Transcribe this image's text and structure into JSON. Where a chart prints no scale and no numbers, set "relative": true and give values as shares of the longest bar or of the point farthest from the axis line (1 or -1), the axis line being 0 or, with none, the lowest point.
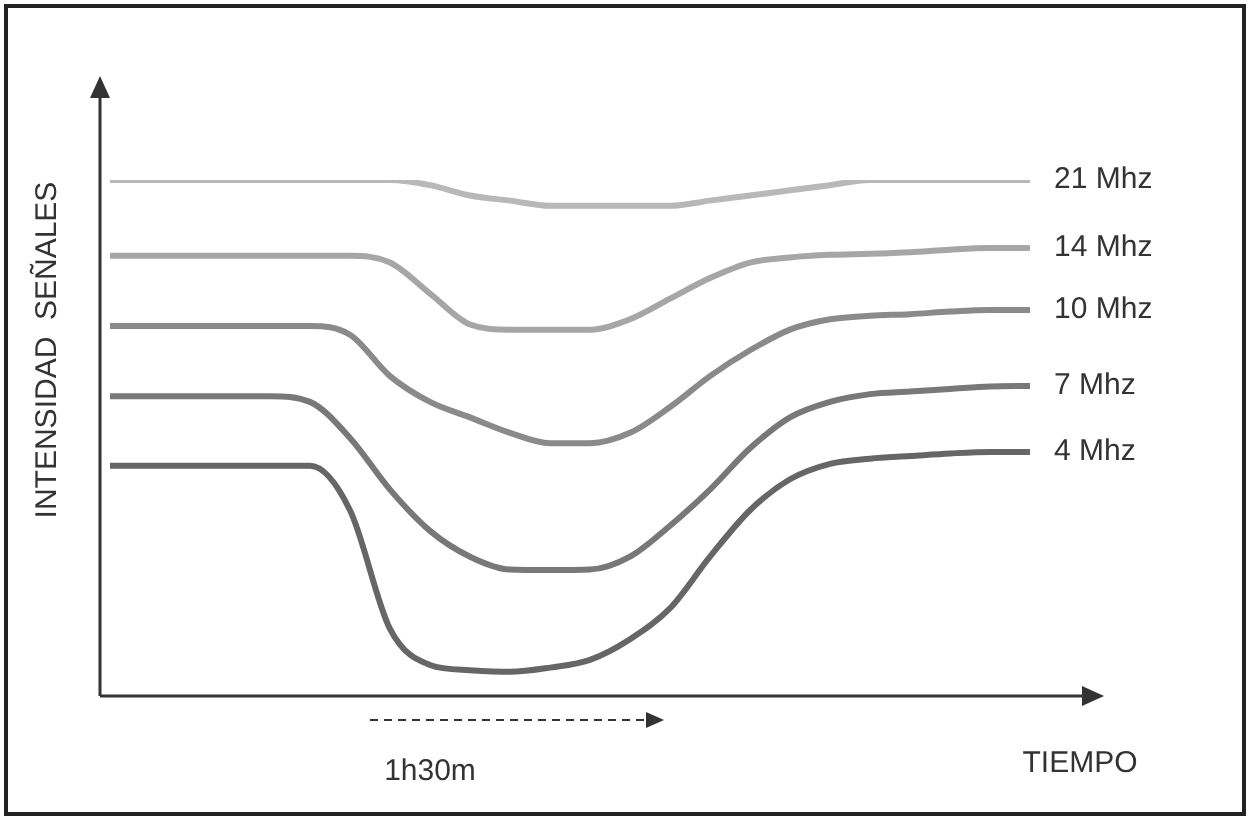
{
  "chart_data": {
    "type": "line",
    "relative": true,
    "xlabel": "TIEMPO",
    "ylabel": "INTENSIDAD  SEÑALES",
    "legend": false,
    "marker": "none",
    "line_style": "solid",
    "annotations": [
      "1h30m"
    ],
    "categories": [
      null,
      null,
      null,
      null,
      null,
      null,
      null,
      null,
      null,
      null,
      null,
      null,
      null,
      null,
      null,
      null,
      null,
      null,
      null,
      null,
      null,
      null,
      null,
      null
    ],
    "series": [
      {
        "name": "21 Mhz",
        "color": "#b8b8b8",
        "values": [
          1,
          1,
          1,
          1,
          1,
          1,
          1,
          1,
          0.99,
          0.97,
          0.96,
          0.95,
          0.95,
          0.95,
          0.95,
          0.96,
          0.97,
          0.98,
          0.99,
          1,
          1,
          1,
          1,
          1
        ]
      },
      {
        "name": "14 Mhz",
        "color": "#a6a6a6",
        "values": [
          0.853,
          0.853,
          0.853,
          0.853,
          0.853,
          0.853,
          0.853,
          0.84,
          0.78,
          0.72,
          0.71,
          0.71,
          0.71,
          0.73,
          0.77,
          0.81,
          0.84,
          0.85,
          0.855,
          0.857,
          0.86,
          0.865,
          0.868,
          0.868
        ]
      },
      {
        "name": "10 Mhz",
        "color": "#8a8a8a",
        "values": [
          0.717,
          0.717,
          0.717,
          0.717,
          0.717,
          0.717,
          0.7,
          0.62,
          0.57,
          0.54,
          0.51,
          0.49,
          0.49,
          0.51,
          0.56,
          0.62,
          0.67,
          0.71,
          0.73,
          0.737,
          0.74,
          0.745,
          0.748,
          0.748
        ]
      },
      {
        "name": "7 Mhz",
        "color": "#787878",
        "values": [
          0.581,
          0.581,
          0.581,
          0.581,
          0.581,
          0.57,
          0.5,
          0.4,
          0.32,
          0.27,
          0.245,
          0.244,
          0.245,
          0.27,
          0.33,
          0.4,
          0.48,
          0.54,
          0.57,
          0.585,
          0.59,
          0.595,
          0.6,
          0.601
        ]
      },
      {
        "name": "4 Mhz",
        "color": "#666666",
        "values": [
          0.446,
          0.446,
          0.446,
          0.446,
          0.446,
          0.446,
          0.36,
          0.13,
          0.06,
          0.05,
          0.047,
          0.055,
          0.07,
          0.11,
          0.17,
          0.27,
          0.36,
          0.42,
          0.45,
          0.46,
          0.465,
          0.47,
          0.473,
          0.473
        ]
      }
    ]
  }
}
